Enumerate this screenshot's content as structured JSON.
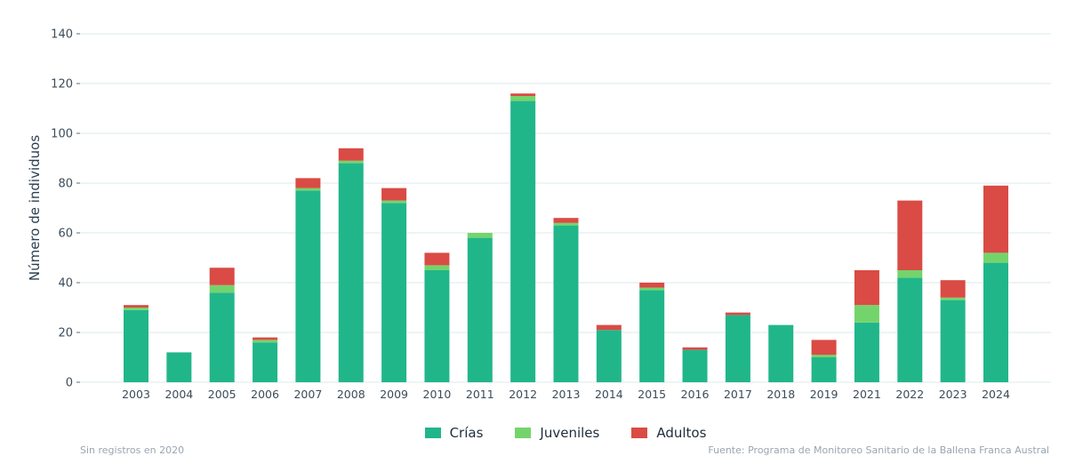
{
  "chart_data": {
    "type": "bar",
    "stacked": true,
    "ylabel": "Número de individuos",
    "xlabel": "",
    "ylim": [
      0,
      140
    ],
    "yticks": [
      0,
      20,
      40,
      60,
      80,
      100,
      120,
      140
    ],
    "grid": true,
    "legend_position": "bottom-center",
    "categories": [
      "2003",
      "2004",
      "2005",
      "2006",
      "2007",
      "2008",
      "2009",
      "2010",
      "2011",
      "2012",
      "2013",
      "2014",
      "2015",
      "2016",
      "2017",
      "2018",
      "2019",
      "2021",
      "2022",
      "2023",
      "2024"
    ],
    "series": [
      {
        "name": "Crías",
        "color": "#21b68a",
        "values": [
          29,
          12,
          36,
          16,
          77,
          88,
          72,
          45,
          58,
          113,
          63,
          21,
          37,
          13,
          27,
          23,
          10,
          24,
          42,
          33,
          48
        ]
      },
      {
        "name": "Juveniles",
        "color": "#74d46c",
        "values": [
          1,
          0,
          3,
          1,
          1,
          1,
          1,
          2,
          2,
          2,
          1,
          0,
          1,
          0,
          0,
          0,
          1,
          7,
          3,
          1,
          4
        ]
      },
      {
        "name": "Adultos",
        "color": "#d94b44",
        "values": [
          1,
          0,
          7,
          1,
          4,
          5,
          5,
          5,
          0,
          1,
          2,
          2,
          2,
          1,
          1,
          0,
          6,
          14,
          28,
          7,
          27
        ]
      }
    ]
  },
  "footer": {
    "left": "Sin registros en 2020",
    "right": "Fuente: Programa de Monitoreo Sanitario de la Ballena Franca Austral"
  }
}
